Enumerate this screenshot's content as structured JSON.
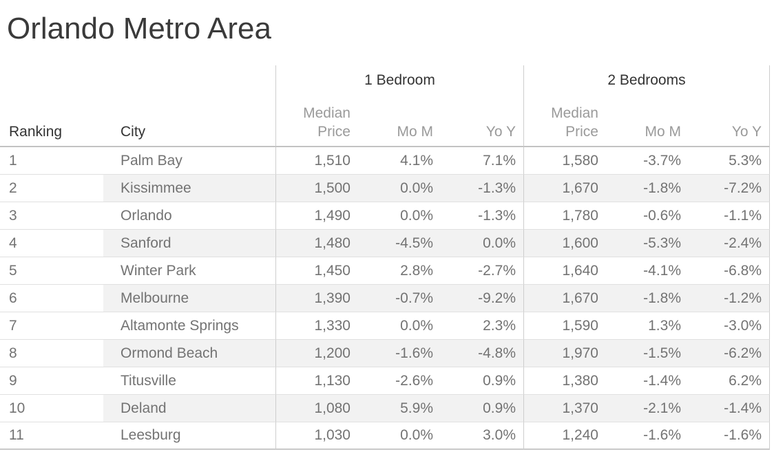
{
  "title": "Orlando Metro Area",
  "chart_data": {
    "type": "table",
    "title": "Orlando Metro Area",
    "row_headers": [
      "Ranking",
      "City"
    ],
    "groups": [
      {
        "label": "1 Bedroom",
        "columns": [
          "Median Price",
          "Mo M",
          "Yo Y"
        ]
      },
      {
        "label": "2 Bedrooms",
        "columns": [
          "Median Price",
          "Mo M",
          "Yo Y"
        ]
      }
    ],
    "rows": [
      [
        "1",
        "Palm Bay",
        "1,510",
        "4.1%",
        "7.1%",
        "1,580",
        "-3.7%",
        "5.3%"
      ],
      [
        "2",
        "Kissimmee",
        "1,500",
        "0.0%",
        "-1.3%",
        "1,670",
        "-1.8%",
        "-7.2%"
      ],
      [
        "3",
        "Orlando",
        "1,490",
        "0.0%",
        "-1.3%",
        "1,780",
        "-0.6%",
        "-1.1%"
      ],
      [
        "4",
        "Sanford",
        "1,480",
        "-4.5%",
        "0.0%",
        "1,600",
        "-5.3%",
        "-2.4%"
      ],
      [
        "5",
        "Winter Park",
        "1,450",
        "2.8%",
        "-2.7%",
        "1,640",
        "-4.1%",
        "-6.8%"
      ],
      [
        "6",
        "Melbourne",
        "1,390",
        "-0.7%",
        "-9.2%",
        "1,670",
        "-1.8%",
        "-1.2%"
      ],
      [
        "7",
        "Altamonte Springs",
        "1,330",
        "0.0%",
        "2.3%",
        "1,590",
        "1.3%",
        "-3.0%"
      ],
      [
        "8",
        "Ormond Beach",
        "1,200",
        "-1.6%",
        "-4.8%",
        "1,970",
        "-1.5%",
        "-6.2%"
      ],
      [
        "9",
        "Titusville",
        "1,130",
        "-2.6%",
        "0.9%",
        "1,380",
        "-1.4%",
        "6.2%"
      ],
      [
        "10",
        "Deland",
        "1,080",
        "5.9%",
        "0.9%",
        "1,370",
        "-2.1%",
        "-1.4%"
      ],
      [
        "11",
        "Leesburg",
        "1,030",
        "0.0%",
        "3.0%",
        "1,240",
        "-1.6%",
        "-1.6%"
      ]
    ],
    "layout": {
      "row_banding": "alternate rows starting at row 2, city column through last column",
      "grid": "light horizontal row dividers, vertical pane dividers before each bedroom group and at right edge"
    }
  },
  "colors": {
    "title_text": "#3a3a3a",
    "header_text": "#333333",
    "subheader_text": "#9a9a9a",
    "data_text": "#737373",
    "row_banding": "#f2f2f2",
    "row_divider": "#e0e0e0",
    "pane_divider": "#cdcdcd",
    "header_underline": "#c2c2c2",
    "bottom_rule": "#c9c9c9",
    "background": "#ffffff"
  }
}
